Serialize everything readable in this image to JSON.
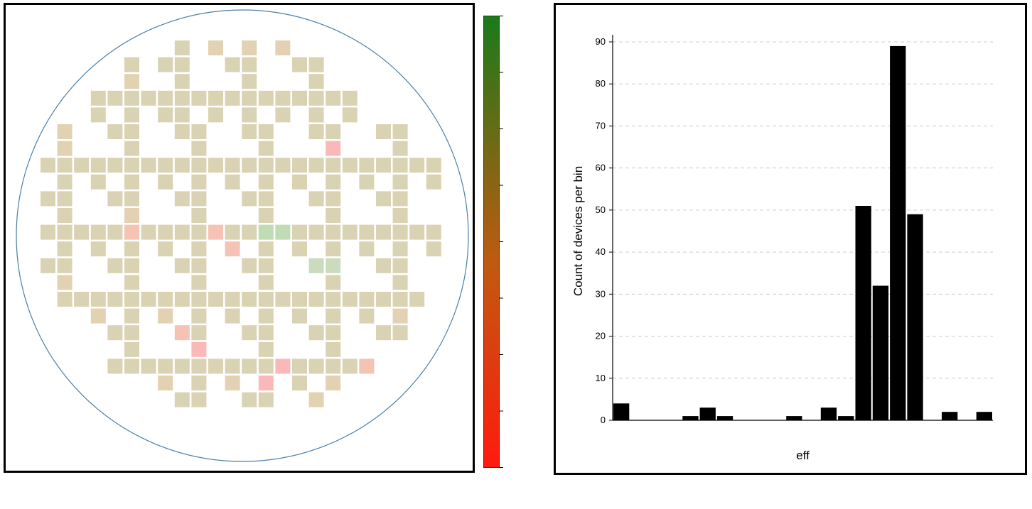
{
  "colors": {
    "die_default": "#d9d3b3",
    "die_warm": "#e2d2b2",
    "die_low_1": "#f4c3b3",
    "die_low_2": "#fbb8b8",
    "die_high": "#bfdcb4",
    "die_high_2": "#cadcbd",
    "wafer_outline": "#4a7fa7",
    "colorbar_top": "#1a7a1a",
    "colorbar_mid": "#c05a10",
    "colorbar_bottom": "#ff1a0f",
    "bar_fill": "#000000",
    "grid": "#cccccc"
  },
  "wafer_map": {
    "grid_cols": 24,
    "grid_rows": 24,
    "dies": [
      {
        "c": 9,
        "r": 0,
        "v": "d"
      },
      {
        "c": 11,
        "r": 0,
        "v": "w"
      },
      {
        "c": 13,
        "r": 0,
        "v": "w"
      },
      {
        "c": 15,
        "r": 0,
        "v": "w"
      },
      {
        "c": 6,
        "r": 1,
        "v": "d"
      },
      {
        "c": 8,
        "r": 1,
        "v": "d"
      },
      {
        "c": 9,
        "r": 1,
        "v": "d"
      },
      {
        "c": 12,
        "r": 1,
        "v": "d"
      },
      {
        "c": 13,
        "r": 1,
        "v": "d"
      },
      {
        "c": 16,
        "r": 1,
        "v": "d"
      },
      {
        "c": 17,
        "r": 1,
        "v": "d"
      },
      {
        "c": 6,
        "r": 2,
        "v": "w"
      },
      {
        "c": 9,
        "r": 2,
        "v": "d"
      },
      {
        "c": 13,
        "r": 2,
        "v": "d"
      },
      {
        "c": 17,
        "r": 2,
        "v": "d"
      },
      {
        "c": 4,
        "r": 3,
        "v": "d"
      },
      {
        "c": 5,
        "r": 3,
        "v": "d"
      },
      {
        "c": 6,
        "r": 3,
        "v": "d"
      },
      {
        "c": 7,
        "r": 3,
        "v": "d"
      },
      {
        "c": 8,
        "r": 3,
        "v": "d"
      },
      {
        "c": 9,
        "r": 3,
        "v": "d"
      },
      {
        "c": 10,
        "r": 3,
        "v": "d"
      },
      {
        "c": 11,
        "r": 3,
        "v": "d"
      },
      {
        "c": 12,
        "r": 3,
        "v": "d"
      },
      {
        "c": 13,
        "r": 3,
        "v": "d"
      },
      {
        "c": 14,
        "r": 3,
        "v": "d"
      },
      {
        "c": 15,
        "r": 3,
        "v": "d"
      },
      {
        "c": 16,
        "r": 3,
        "v": "d"
      },
      {
        "c": 17,
        "r": 3,
        "v": "d"
      },
      {
        "c": 18,
        "r": 3,
        "v": "d"
      },
      {
        "c": 19,
        "r": 3,
        "v": "d"
      },
      {
        "c": 4,
        "r": 4,
        "v": "d"
      },
      {
        "c": 6,
        "r": 4,
        "v": "d"
      },
      {
        "c": 8,
        "r": 4,
        "v": "d"
      },
      {
        "c": 9,
        "r": 4,
        "v": "d"
      },
      {
        "c": 11,
        "r": 4,
        "v": "d"
      },
      {
        "c": 13,
        "r": 4,
        "v": "d"
      },
      {
        "c": 15,
        "r": 4,
        "v": "d"
      },
      {
        "c": 17,
        "r": 4,
        "v": "d"
      },
      {
        "c": 19,
        "r": 4,
        "v": "d"
      },
      {
        "c": 2,
        "r": 5,
        "v": "w"
      },
      {
        "c": 5,
        "r": 5,
        "v": "d"
      },
      {
        "c": 6,
        "r": 5,
        "v": "d"
      },
      {
        "c": 9,
        "r": 5,
        "v": "d"
      },
      {
        "c": 10,
        "r": 5,
        "v": "d"
      },
      {
        "c": 13,
        "r": 5,
        "v": "d"
      },
      {
        "c": 14,
        "r": 5,
        "v": "d"
      },
      {
        "c": 17,
        "r": 5,
        "v": "d"
      },
      {
        "c": 18,
        "r": 5,
        "v": "d"
      },
      {
        "c": 21,
        "r": 5,
        "v": "d"
      },
      {
        "c": 22,
        "r": 5,
        "v": "d"
      },
      {
        "c": 2,
        "r": 6,
        "v": "w"
      },
      {
        "c": 6,
        "r": 6,
        "v": "d"
      },
      {
        "c": 10,
        "r": 6,
        "v": "d"
      },
      {
        "c": 14,
        "r": 6,
        "v": "d"
      },
      {
        "c": 18,
        "r": 6,
        "v": "l2"
      },
      {
        "c": 22,
        "r": 6,
        "v": "d"
      },
      {
        "c": 1,
        "r": 7,
        "v": "d"
      },
      {
        "c": 2,
        "r": 7,
        "v": "d"
      },
      {
        "c": 3,
        "r": 7,
        "v": "d"
      },
      {
        "c": 4,
        "r": 7,
        "v": "d"
      },
      {
        "c": 5,
        "r": 7,
        "v": "d"
      },
      {
        "c": 6,
        "r": 7,
        "v": "d"
      },
      {
        "c": 7,
        "r": 7,
        "v": "d"
      },
      {
        "c": 8,
        "r": 7,
        "v": "d"
      },
      {
        "c": 9,
        "r": 7,
        "v": "d"
      },
      {
        "c": 10,
        "r": 7,
        "v": "d"
      },
      {
        "c": 11,
        "r": 7,
        "v": "d"
      },
      {
        "c": 12,
        "r": 7,
        "v": "d"
      },
      {
        "c": 13,
        "r": 7,
        "v": "d"
      },
      {
        "c": 14,
        "r": 7,
        "v": "d"
      },
      {
        "c": 15,
        "r": 7,
        "v": "d"
      },
      {
        "c": 16,
        "r": 7,
        "v": "d"
      },
      {
        "c": 17,
        "r": 7,
        "v": "d"
      },
      {
        "c": 18,
        "r": 7,
        "v": "d"
      },
      {
        "c": 19,
        "r": 7,
        "v": "d"
      },
      {
        "c": 20,
        "r": 7,
        "v": "d"
      },
      {
        "c": 21,
        "r": 7,
        "v": "d"
      },
      {
        "c": 22,
        "r": 7,
        "v": "d"
      },
      {
        "c": 23,
        "r": 7,
        "v": "d"
      },
      {
        "c": 24,
        "r": 7,
        "v": "d"
      },
      {
        "c": 2,
        "r": 8,
        "v": "d"
      },
      {
        "c": 4,
        "r": 8,
        "v": "d"
      },
      {
        "c": 6,
        "r": 8,
        "v": "d"
      },
      {
        "c": 8,
        "r": 8,
        "v": "d"
      },
      {
        "c": 10,
        "r": 8,
        "v": "d"
      },
      {
        "c": 12,
        "r": 8,
        "v": "d"
      },
      {
        "c": 14,
        "r": 8,
        "v": "d"
      },
      {
        "c": 16,
        "r": 8,
        "v": "d"
      },
      {
        "c": 18,
        "r": 8,
        "v": "d"
      },
      {
        "c": 20,
        "r": 8,
        "v": "d"
      },
      {
        "c": 22,
        "r": 8,
        "v": "d"
      },
      {
        "c": 24,
        "r": 8,
        "v": "d"
      },
      {
        "c": 1,
        "r": 9,
        "v": "d"
      },
      {
        "c": 2,
        "r": 9,
        "v": "d"
      },
      {
        "c": 5,
        "r": 9,
        "v": "d"
      },
      {
        "c": 6,
        "r": 9,
        "v": "d"
      },
      {
        "c": 9,
        "r": 9,
        "v": "d"
      },
      {
        "c": 10,
        "r": 9,
        "v": "d"
      },
      {
        "c": 13,
        "r": 9,
        "v": "d"
      },
      {
        "c": 14,
        "r": 9,
        "v": "d"
      },
      {
        "c": 17,
        "r": 9,
        "v": "d"
      },
      {
        "c": 18,
        "r": 9,
        "v": "d"
      },
      {
        "c": 21,
        "r": 9,
        "v": "d"
      },
      {
        "c": 22,
        "r": 9,
        "v": "d"
      },
      {
        "c": 2,
        "r": 10,
        "v": "d"
      },
      {
        "c": 6,
        "r": 10,
        "v": "w"
      },
      {
        "c": 10,
        "r": 10,
        "v": "d"
      },
      {
        "c": 14,
        "r": 10,
        "v": "d"
      },
      {
        "c": 18,
        "r": 10,
        "v": "d"
      },
      {
        "c": 22,
        "r": 10,
        "v": "d"
      },
      {
        "c": 1,
        "r": 11,
        "v": "d"
      },
      {
        "c": 2,
        "r": 11,
        "v": "d"
      },
      {
        "c": 3,
        "r": 11,
        "v": "d"
      },
      {
        "c": 4,
        "r": 11,
        "v": "d"
      },
      {
        "c": 5,
        "r": 11,
        "v": "d"
      },
      {
        "c": 6,
        "r": 11,
        "v": "l1"
      },
      {
        "c": 7,
        "r": 11,
        "v": "d"
      },
      {
        "c": 8,
        "r": 11,
        "v": "d"
      },
      {
        "c": 9,
        "r": 11,
        "v": "d"
      },
      {
        "c": 10,
        "r": 11,
        "v": "d"
      },
      {
        "c": 11,
        "r": 11,
        "v": "l1"
      },
      {
        "c": 12,
        "r": 11,
        "v": "d"
      },
      {
        "c": 13,
        "r": 11,
        "v": "d"
      },
      {
        "c": 14,
        "r": 11,
        "v": "h"
      },
      {
        "c": 15,
        "r": 11,
        "v": "h"
      },
      {
        "c": 16,
        "r": 11,
        "v": "d"
      },
      {
        "c": 17,
        "r": 11,
        "v": "d"
      },
      {
        "c": 18,
        "r": 11,
        "v": "d"
      },
      {
        "c": 19,
        "r": 11,
        "v": "d"
      },
      {
        "c": 20,
        "r": 11,
        "v": "d"
      },
      {
        "c": 21,
        "r": 11,
        "v": "d"
      },
      {
        "c": 22,
        "r": 11,
        "v": "d"
      },
      {
        "c": 23,
        "r": 11,
        "v": "d"
      },
      {
        "c": 24,
        "r": 11,
        "v": "d"
      },
      {
        "c": 2,
        "r": 12,
        "v": "d"
      },
      {
        "c": 4,
        "r": 12,
        "v": "d"
      },
      {
        "c": 6,
        "r": 12,
        "v": "d"
      },
      {
        "c": 8,
        "r": 12,
        "v": "d"
      },
      {
        "c": 10,
        "r": 12,
        "v": "d"
      },
      {
        "c": 12,
        "r": 12,
        "v": "l1"
      },
      {
        "c": 14,
        "r": 12,
        "v": "d"
      },
      {
        "c": 16,
        "r": 12,
        "v": "d"
      },
      {
        "c": 18,
        "r": 12,
        "v": "d"
      },
      {
        "c": 20,
        "r": 12,
        "v": "d"
      },
      {
        "c": 22,
        "r": 12,
        "v": "d"
      },
      {
        "c": 24,
        "r": 12,
        "v": "d"
      },
      {
        "c": 1,
        "r": 13,
        "v": "d"
      },
      {
        "c": 2,
        "r": 13,
        "v": "d"
      },
      {
        "c": 5,
        "r": 13,
        "v": "d"
      },
      {
        "c": 6,
        "r": 13,
        "v": "d"
      },
      {
        "c": 9,
        "r": 13,
        "v": "d"
      },
      {
        "c": 10,
        "r": 13,
        "v": "d"
      },
      {
        "c": 13,
        "r": 13,
        "v": "d"
      },
      {
        "c": 14,
        "r": 13,
        "v": "d"
      },
      {
        "c": 17,
        "r": 13,
        "v": "h2"
      },
      {
        "c": 18,
        "r": 13,
        "v": "h2"
      },
      {
        "c": 21,
        "r": 13,
        "v": "d"
      },
      {
        "c": 22,
        "r": 13,
        "v": "d"
      },
      {
        "c": 2,
        "r": 14,
        "v": "w"
      },
      {
        "c": 6,
        "r": 14,
        "v": "d"
      },
      {
        "c": 10,
        "r": 14,
        "v": "d"
      },
      {
        "c": 14,
        "r": 14,
        "v": "d"
      },
      {
        "c": 18,
        "r": 14,
        "v": "d"
      },
      {
        "c": 22,
        "r": 14,
        "v": "d"
      },
      {
        "c": 2,
        "r": 15,
        "v": "d"
      },
      {
        "c": 3,
        "r": 15,
        "v": "d"
      },
      {
        "c": 4,
        "r": 15,
        "v": "d"
      },
      {
        "c": 5,
        "r": 15,
        "v": "d"
      },
      {
        "c": 6,
        "r": 15,
        "v": "d"
      },
      {
        "c": 7,
        "r": 15,
        "v": "d"
      },
      {
        "c": 8,
        "r": 15,
        "v": "d"
      },
      {
        "c": 9,
        "r": 15,
        "v": "d"
      },
      {
        "c": 10,
        "r": 15,
        "v": "d"
      },
      {
        "c": 11,
        "r": 15,
        "v": "d"
      },
      {
        "c": 12,
        "r": 15,
        "v": "d"
      },
      {
        "c": 13,
        "r": 15,
        "v": "d"
      },
      {
        "c": 14,
        "r": 15,
        "v": "d"
      },
      {
        "c": 15,
        "r": 15,
        "v": "d"
      },
      {
        "c": 16,
        "r": 15,
        "v": "d"
      },
      {
        "c": 17,
        "r": 15,
        "v": "d"
      },
      {
        "c": 18,
        "r": 15,
        "v": "d"
      },
      {
        "c": 19,
        "r": 15,
        "v": "d"
      },
      {
        "c": 20,
        "r": 15,
        "v": "d"
      },
      {
        "c": 21,
        "r": 15,
        "v": "d"
      },
      {
        "c": 22,
        "r": 15,
        "v": "d"
      },
      {
        "c": 23,
        "r": 15,
        "v": "d"
      },
      {
        "c": 4,
        "r": 16,
        "v": "w"
      },
      {
        "c": 6,
        "r": 16,
        "v": "d"
      },
      {
        "c": 8,
        "r": 16,
        "v": "w"
      },
      {
        "c": 10,
        "r": 16,
        "v": "d"
      },
      {
        "c": 12,
        "r": 16,
        "v": "d"
      },
      {
        "c": 14,
        "r": 16,
        "v": "d"
      },
      {
        "c": 16,
        "r": 16,
        "v": "d"
      },
      {
        "c": 18,
        "r": 16,
        "v": "d"
      },
      {
        "c": 20,
        "r": 16,
        "v": "d"
      },
      {
        "c": 22,
        "r": 16,
        "v": "w"
      },
      {
        "c": 5,
        "r": 17,
        "v": "d"
      },
      {
        "c": 6,
        "r": 17,
        "v": "d"
      },
      {
        "c": 9,
        "r": 17,
        "v": "l1"
      },
      {
        "c": 10,
        "r": 17,
        "v": "d"
      },
      {
        "c": 13,
        "r": 17,
        "v": "d"
      },
      {
        "c": 14,
        "r": 17,
        "v": "d"
      },
      {
        "c": 17,
        "r": 17,
        "v": "d"
      },
      {
        "c": 18,
        "r": 17,
        "v": "d"
      },
      {
        "c": 21,
        "r": 17,
        "v": "d"
      },
      {
        "c": 22,
        "r": 17,
        "v": "d"
      },
      {
        "c": 6,
        "r": 18,
        "v": "d"
      },
      {
        "c": 10,
        "r": 18,
        "v": "l2"
      },
      {
        "c": 14,
        "r": 18,
        "v": "d"
      },
      {
        "c": 18,
        "r": 18,
        "v": "d"
      },
      {
        "c": 5,
        "r": 19,
        "v": "d"
      },
      {
        "c": 6,
        "r": 19,
        "v": "d"
      },
      {
        "c": 7,
        "r": 19,
        "v": "d"
      },
      {
        "c": 8,
        "r": 19,
        "v": "d"
      },
      {
        "c": 9,
        "r": 19,
        "v": "d"
      },
      {
        "c": 10,
        "r": 19,
        "v": "d"
      },
      {
        "c": 11,
        "r": 19,
        "v": "d"
      },
      {
        "c": 12,
        "r": 19,
        "v": "d"
      },
      {
        "c": 13,
        "r": 19,
        "v": "d"
      },
      {
        "c": 14,
        "r": 19,
        "v": "d"
      },
      {
        "c": 15,
        "r": 19,
        "v": "l2"
      },
      {
        "c": 16,
        "r": 19,
        "v": "d"
      },
      {
        "c": 17,
        "r": 19,
        "v": "d"
      },
      {
        "c": 18,
        "r": 19,
        "v": "d"
      },
      {
        "c": 19,
        "r": 19,
        "v": "d"
      },
      {
        "c": 20,
        "r": 19,
        "v": "l1"
      },
      {
        "c": 8,
        "r": 20,
        "v": "w"
      },
      {
        "c": 10,
        "r": 20,
        "v": "d"
      },
      {
        "c": 12,
        "r": 20,
        "v": "w"
      },
      {
        "c": 14,
        "r": 20,
        "v": "l2"
      },
      {
        "c": 16,
        "r": 20,
        "v": "d"
      },
      {
        "c": 18,
        "r": 20,
        "v": "w"
      },
      {
        "c": 9,
        "r": 21,
        "v": "d"
      },
      {
        "c": 10,
        "r": 21,
        "v": "d"
      },
      {
        "c": 13,
        "r": 21,
        "v": "d"
      },
      {
        "c": 14,
        "r": 21,
        "v": "d"
      },
      {
        "c": 17,
        "r": 21,
        "v": "w"
      }
    ]
  },
  "colorbar": {
    "tick_count": 9
  },
  "chart_data": {
    "type": "bar",
    "title": "",
    "xlabel": "eff",
    "ylabel": "Count of devices per bin",
    "ylim": [
      0,
      90
    ],
    "yticks": [
      0,
      10,
      20,
      30,
      40,
      50,
      60,
      70,
      80,
      90
    ],
    "grid": "horizontal dashed",
    "bin_count": 22,
    "values": [
      4,
      0,
      0,
      0,
      1,
      3,
      1,
      0,
      0,
      0,
      1,
      0,
      3,
      1,
      51,
      32,
      89,
      49,
      0,
      2,
      0,
      2
    ]
  }
}
